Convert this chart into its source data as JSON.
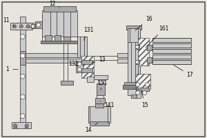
{
  "bg_color": "#e8e4de",
  "lc": "#444444",
  "fl": "#cccccc",
  "fm": "#aaaaaa",
  "fd": "#888888",
  "fw": "#f0f0f0",
  "label_fontsize": 5.5,
  "border_color": "#555555"
}
